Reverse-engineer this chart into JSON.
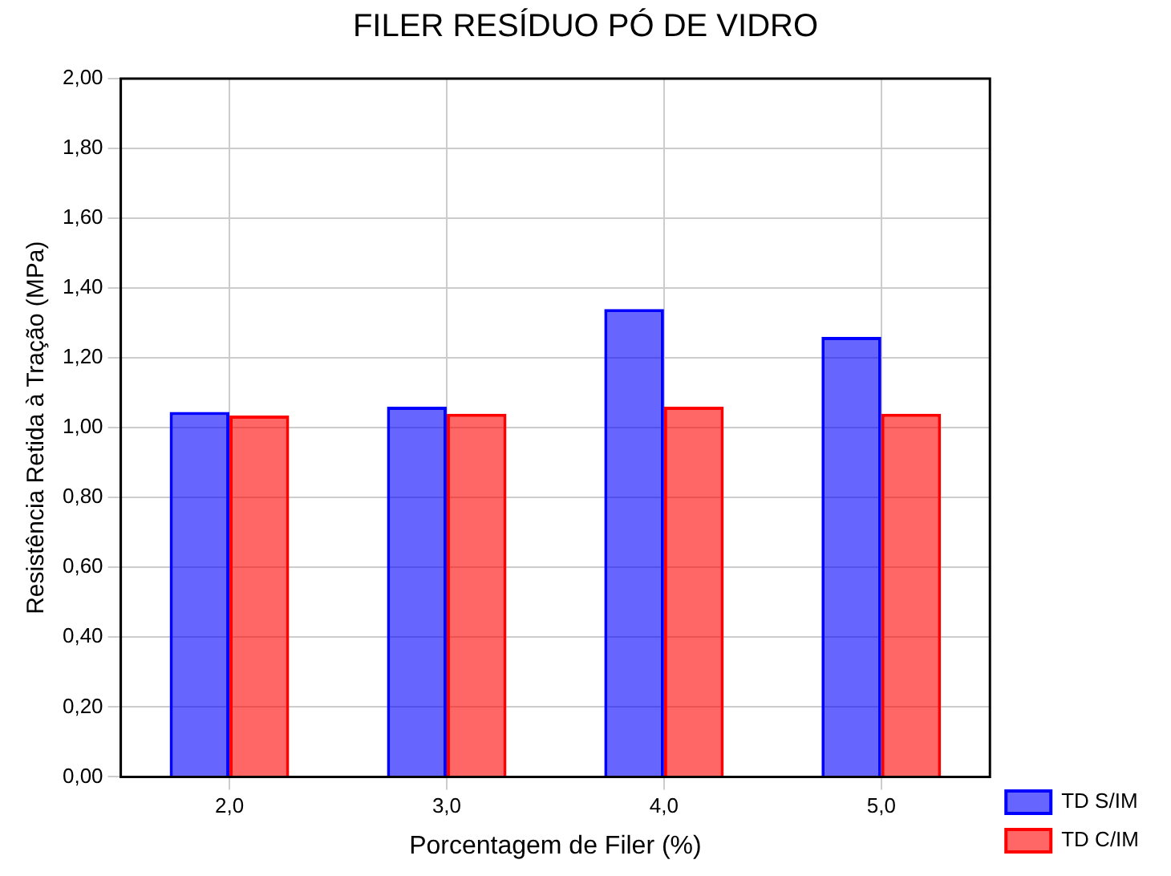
{
  "chart_data": {
    "type": "bar",
    "title": "FILER RESÍDUO PÓ DE VIDRO",
    "xlabel": "Porcentagem de Filer (%)",
    "ylabel": "Resistência Retida à Tração (MPa)",
    "categories": [
      "2,0",
      "3,0",
      "4,0",
      "5,0"
    ],
    "series": [
      {
        "name": "TD S/IM",
        "color": "#0000ff",
        "values": [
          1.045,
          1.06,
          1.34,
          1.26
        ]
      },
      {
        "name": "TD C/IM",
        "color": "#ff0000",
        "values": [
          1.035,
          1.04,
          1.06,
          1.04
        ]
      }
    ],
    "ylim": [
      0,
      2
    ],
    "yticks": [
      {
        "value": 0,
        "label": "0,00"
      },
      {
        "value": 0.2,
        "label": "0,20"
      },
      {
        "value": 0.4,
        "label": "0,40"
      },
      {
        "value": 0.6,
        "label": "0,60"
      },
      {
        "value": 0.8,
        "label": "0,80"
      },
      {
        "value": 1,
        "label": "1,00"
      },
      {
        "value": 1.2,
        "label": "1,20"
      },
      {
        "value": 1.4,
        "label": "1,40"
      },
      {
        "value": 1.6,
        "label": "1,60"
      },
      {
        "value": 1.8,
        "label": "1,80"
      },
      {
        "value": 2,
        "label": "2,00"
      }
    ],
    "grid": true,
    "legend": "bottom right"
  }
}
